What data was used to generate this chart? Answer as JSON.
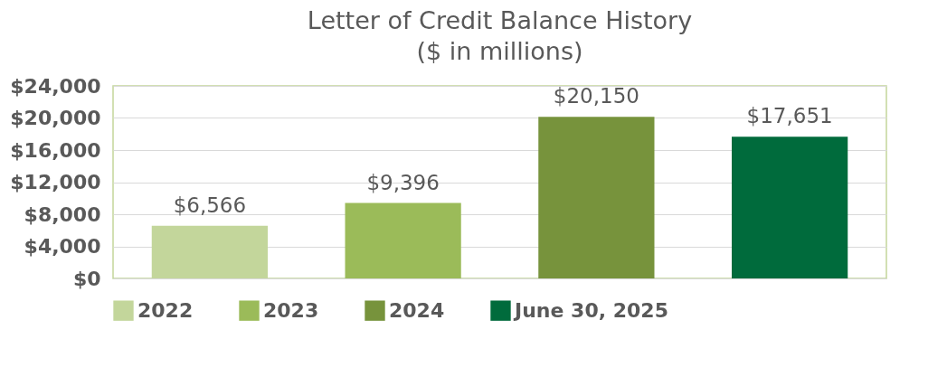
{
  "chart_data": {
    "type": "bar",
    "title": "Letter of Credit Balance History",
    "subtitle": "($ in millions)",
    "categories": [
      null,
      null,
      null,
      null
    ],
    "series": [
      {
        "name": "2022",
        "color": "#c3d69b",
        "values": [
          6566,
          null,
          null,
          null
        ],
        "value_labels": [
          "$6,566",
          null,
          null,
          null
        ]
      },
      {
        "name": "2023",
        "color": "#9bbb59",
        "values": [
          null,
          9396,
          null,
          null
        ],
        "value_labels": [
          null,
          "$9,396",
          null,
          null
        ]
      },
      {
        "name": "2024",
        "color": "#77933c",
        "values": [
          null,
          null,
          20150,
          null
        ],
        "value_labels": [
          null,
          null,
          "$20,150",
          null
        ]
      },
      {
        "name": "June 30, 2025",
        "color": "#006b3c",
        "values": [
          null,
          null,
          null,
          17651
        ],
        "value_labels": [
          null,
          null,
          null,
          "$17,651"
        ]
      }
    ],
    "ylim": [
      0,
      24000
    ],
    "yticks": [
      {
        "value": 0,
        "label": "$0"
      },
      {
        "value": 4000,
        "label": "$4,000"
      },
      {
        "value": 8000,
        "label": "$8,000"
      },
      {
        "value": 12000,
        "label": "$12,000"
      },
      {
        "value": 16000,
        "label": "$16,000"
      },
      {
        "value": 20000,
        "label": "$20,000"
      },
      {
        "value": 24000,
        "label": "$24,000"
      }
    ],
    "grid": "y",
    "legend": "bottom"
  }
}
